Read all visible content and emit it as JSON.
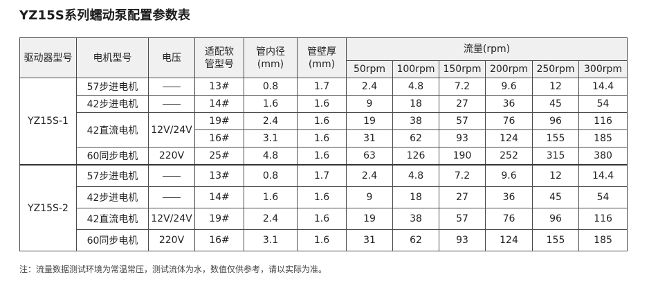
{
  "title": "YZ15S系列蠕动泵配置参数表",
  "headers": {
    "driver_model": "驱动器型号",
    "motor_model": "电机型号",
    "voltage": "电压",
    "tube_model": "适配软\n管型号",
    "inner_diameter": "管内径\n(mm)",
    "wall_thickness": "管壁厚\n(mm)",
    "flow": "流量(rpm)",
    "rpm": [
      "50rpm",
      "100rpm",
      "150rpm",
      "200rpm",
      "250rpm",
      "300rpm"
    ]
  },
  "groups": [
    {
      "driver": "YZ15S-1",
      "rows": [
        {
          "motor": "57步进电机",
          "voltage": "—",
          "tube": "13#",
          "id": "0.8",
          "wall": "1.7",
          "flows": [
            "2.4",
            "4.8",
            "7.2",
            "9.6",
            "12",
            "14.4"
          ]
        },
        {
          "motor": "42步进电机",
          "voltage": "—",
          "tube": "14#",
          "id": "1.6",
          "wall": "1.6",
          "flows": [
            "9",
            "18",
            "27",
            "36",
            "45",
            "54"
          ]
        },
        {
          "motor": "42直流电机",
          "voltage": "12V/24V",
          "tube": "19#",
          "id": "2.4",
          "wall": "1.6",
          "flows": [
            "19",
            "38",
            "57",
            "76",
            "96",
            "116"
          ]
        },
        {
          "motor": "",
          "voltage": "",
          "tube": "16#",
          "id": "3.1",
          "wall": "1.6",
          "flows": [
            "31",
            "62",
            "93",
            "124",
            "155",
            "185"
          ]
        },
        {
          "motor": "60同步电机",
          "voltage": "220V",
          "tube": "25#",
          "id": "4.8",
          "wall": "1.6",
          "flows": [
            "63",
            "126",
            "190",
            "252",
            "315",
            "380"
          ]
        }
      ]
    },
    {
      "driver": "YZ15S-2",
      "rows": [
        {
          "motor": "57步进电机",
          "voltage": "—",
          "tube": "13#",
          "id": "0.8",
          "wall": "1.7",
          "flows": [
            "2.4",
            "4.8",
            "7.2",
            "9.6",
            "12",
            "14.4"
          ]
        },
        {
          "motor": "42步进电机",
          "voltage": "—",
          "tube": "14#",
          "id": "1.6",
          "wall": "1.6",
          "flows": [
            "9",
            "18",
            "27",
            "36",
            "45",
            "54"
          ]
        },
        {
          "motor": "42直流电机",
          "voltage": "12V/24V",
          "tube": "19#",
          "id": "2.4",
          "wall": "1.6",
          "flows": [
            "19",
            "38",
            "57",
            "76",
            "96",
            "116"
          ]
        },
        {
          "motor": "60同步电机",
          "voltage": "220V",
          "tube": "16#",
          "id": "3.1",
          "wall": "1.6",
          "flows": [
            "31",
            "62",
            "93",
            "124",
            "155",
            "185"
          ]
        }
      ]
    }
  ],
  "note": "注：流量数据测试环境为常温常压，测试流体为水，数值仅供参考，请以实际为准。"
}
